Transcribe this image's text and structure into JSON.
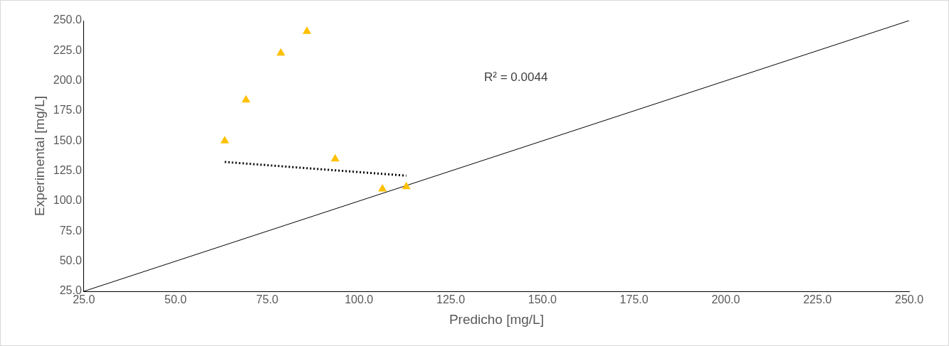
{
  "chart_data": {
    "type": "scatter",
    "xlabel": "Predicho [mg/L]",
    "ylabel": "Experimental [mg/L]",
    "xlim": [
      25,
      250
    ],
    "ylim": [
      25,
      250
    ],
    "xticks": [
      {
        "value": 25,
        "label": "25.0"
      },
      {
        "value": 50,
        "label": "50.0"
      },
      {
        "value": 75,
        "label": "75.0"
      },
      {
        "value": 100,
        "label": "100.0"
      },
      {
        "value": 125,
        "label": "125.0"
      },
      {
        "value": 150,
        "label": "150.0"
      },
      {
        "value": 175,
        "label": "175.0"
      },
      {
        "value": 200,
        "label": "200.0"
      },
      {
        "value": 225,
        "label": "225.0"
      },
      {
        "value": 250,
        "label": "250.0"
      }
    ],
    "yticks": [
      {
        "value": 25,
        "label": "25.0"
      },
      {
        "value": 50,
        "label": "50.0"
      },
      {
        "value": 75,
        "label": "75.0"
      },
      {
        "value": 100,
        "label": "100.0"
      },
      {
        "value": 125,
        "label": "125.0"
      },
      {
        "value": 150,
        "label": "150.0"
      },
      {
        "value": 175,
        "label": "175.0"
      },
      {
        "value": 200,
        "label": "200.0"
      },
      {
        "value": 225,
        "label": "225.0"
      },
      {
        "value": 250,
        "label": "250.0"
      }
    ],
    "grid": false,
    "legend": false,
    "marker": "triangle",
    "series": [
      {
        "type": "scatter",
        "color": "#ffc000",
        "x": [
          63.4,
          69.2,
          78.7,
          85.8,
          93.5,
          106.4,
          112.9
        ],
        "values": [
          150,
          184,
          223,
          241,
          135,
          110,
          112
        ]
      },
      {
        "type": "line",
        "color": "#000000",
        "marker": "none",
        "line_style": "solid",
        "x": [
          25,
          250
        ],
        "values": [
          25,
          250
        ]
      },
      {
        "type": "line",
        "color": "#000000",
        "marker": "none",
        "line_style": "dotted",
        "x": [
          63.4,
          112.9
        ],
        "values": [
          132.5,
          121.1
        ]
      }
    ],
    "annotations": [
      "R² = 0.0044"
    ]
  }
}
